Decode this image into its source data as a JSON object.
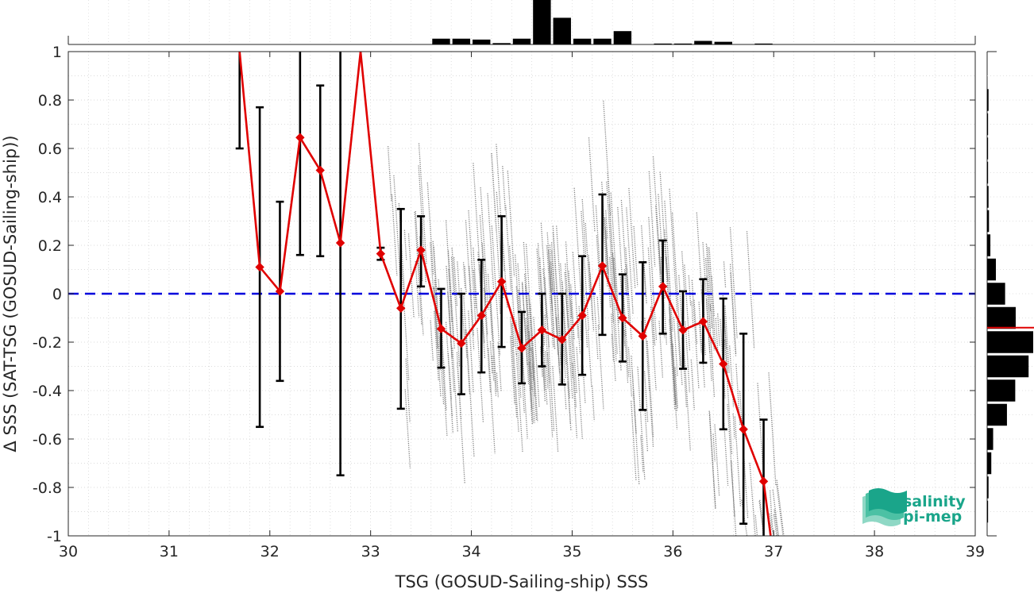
{
  "chart_data": {
    "type": "scatter",
    "xlabel": "TSG (GOSUD-Sailing-ship) SSS",
    "ylabel": "Δ SSS (SAT-TSG (GOSUD-Sailing-ship))",
    "xlim": [
      30,
      39
    ],
    "ylim": [
      -1,
      1
    ],
    "xticks": [
      "30",
      "31",
      "32",
      "33",
      "34",
      "35",
      "36",
      "37",
      "38",
      "39"
    ],
    "yticks": [
      "1",
      "0.8",
      "0.6",
      "0.4",
      "0.2",
      "0",
      "-0.2",
      "-0.4",
      "-0.6",
      "-0.8",
      "-1"
    ],
    "grid": "dotted",
    "zero_line": {
      "y": 0,
      "color": "#0000dd",
      "style": "dashed"
    },
    "binned_mean": {
      "color": "#e00000",
      "points": [
        {
          "x": 31.7,
          "y": 1.0,
          "lo": 0.6,
          "hi": 1.0
        },
        {
          "x": 31.9,
          "y": 0.11,
          "lo": -0.55,
          "hi": 0.77
        },
        {
          "x": 32.1,
          "y": 0.01,
          "lo": -0.36,
          "hi": 0.38
        },
        {
          "x": 32.3,
          "y": 0.645,
          "lo": 0.16,
          "hi": 1.0
        },
        {
          "x": 32.5,
          "y": 0.51,
          "lo": 0.155,
          "hi": 0.86
        },
        {
          "x": 32.7,
          "y": 0.21,
          "lo": -0.75,
          "hi": 1.0
        },
        {
          "x": 32.9,
          "y": 1.0,
          "lo": 1.0,
          "hi": 1.0
        },
        {
          "x": 33.1,
          "y": 0.165,
          "lo": 0.14,
          "hi": 0.19
        },
        {
          "x": 33.3,
          "y": -0.06,
          "lo": -0.475,
          "hi": 0.35
        },
        {
          "x": 33.5,
          "y": 0.18,
          "lo": 0.03,
          "hi": 0.32
        },
        {
          "x": 33.7,
          "y": -0.145,
          "lo": -0.305,
          "hi": 0.02
        },
        {
          "x": 33.9,
          "y": -0.205,
          "lo": -0.415,
          "hi": 0.0
        },
        {
          "x": 34.1,
          "y": -0.09,
          "lo": -0.325,
          "hi": 0.14
        },
        {
          "x": 34.3,
          "y": 0.05,
          "lo": -0.22,
          "hi": 0.32
        },
        {
          "x": 34.5,
          "y": -0.225,
          "lo": -0.37,
          "hi": -0.075
        },
        {
          "x": 34.7,
          "y": -0.15,
          "lo": -0.3,
          "hi": 0.0
        },
        {
          "x": 34.9,
          "y": -0.19,
          "lo": -0.375,
          "hi": 0.0
        },
        {
          "x": 35.1,
          "y": -0.09,
          "lo": -0.335,
          "hi": 0.155
        },
        {
          "x": 35.3,
          "y": 0.115,
          "lo": -0.17,
          "hi": 0.41
        },
        {
          "x": 35.5,
          "y": -0.1,
          "lo": -0.28,
          "hi": 0.08
        },
        {
          "x": 35.7,
          "y": -0.175,
          "lo": -0.48,
          "hi": 0.13
        },
        {
          "x": 35.9,
          "y": 0.03,
          "lo": -0.165,
          "hi": 0.22
        },
        {
          "x": 36.1,
          "y": -0.15,
          "lo": -0.31,
          "hi": 0.01
        },
        {
          "x": 36.3,
          "y": -0.115,
          "lo": -0.285,
          "hi": 0.06
        },
        {
          "x": 36.5,
          "y": -0.29,
          "lo": -0.56,
          "hi": -0.02
        },
        {
          "x": 36.7,
          "y": -0.56,
          "lo": -0.95,
          "hi": -0.165
        },
        {
          "x": 36.9,
          "y": -0.775,
          "lo": -1.0,
          "hi": -0.52
        },
        {
          "x": 36.97,
          "y": -1.0,
          "lo": -1.0,
          "hi": -1.0
        }
      ]
    },
    "scatter_color": "#808080",
    "top_histogram": {
      "color": "#000000",
      "bins": [
        {
          "x": 33.7,
          "value": 0.13
        },
        {
          "x": 33.9,
          "value": 0.13
        },
        {
          "x": 34.1,
          "value": 0.11
        },
        {
          "x": 34.3,
          "value": 0.03
        },
        {
          "x": 34.5,
          "value": 0.13
        },
        {
          "x": 34.7,
          "value": 1.0
        },
        {
          "x": 34.9,
          "value": 0.6
        },
        {
          "x": 35.1,
          "value": 0.13
        },
        {
          "x": 35.3,
          "value": 0.13
        },
        {
          "x": 35.5,
          "value": 0.3
        },
        {
          "x": 35.9,
          "value": 0.02
        },
        {
          "x": 36.1,
          "value": 0.02
        },
        {
          "x": 36.3,
          "value": 0.08
        },
        {
          "x": 36.5,
          "value": 0.06
        },
        {
          "x": 36.9,
          "value": 0.02
        }
      ]
    },
    "right_histogram": {
      "color": "#000000",
      "median_line": {
        "y": -0.14,
        "color": "#e00000"
      },
      "bins": [
        {
          "y": 0.8,
          "value": 0.03
        },
        {
          "y": 0.7,
          "value": 0.02
        },
        {
          "y": 0.6,
          "value": 0.02
        },
        {
          "y": 0.5,
          "value": 0.02
        },
        {
          "y": 0.4,
          "value": 0.03
        },
        {
          "y": 0.3,
          "value": 0.04
        },
        {
          "y": 0.2,
          "value": 0.07
        },
        {
          "y": 0.1,
          "value": 0.19
        },
        {
          "y": 0.0,
          "value": 0.39
        },
        {
          "y": -0.1,
          "value": 0.62
        },
        {
          "y": -0.2,
          "value": 1.0
        },
        {
          "y": -0.3,
          "value": 0.9
        },
        {
          "y": -0.4,
          "value": 0.61
        },
        {
          "y": -0.5,
          "value": 0.43
        },
        {
          "y": -0.6,
          "value": 0.13
        },
        {
          "y": -0.7,
          "value": 0.09
        },
        {
          "y": -0.8,
          "value": 0.03
        },
        {
          "y": -0.9,
          "value": 0.02
        }
      ]
    }
  },
  "logo": {
    "line1": "salinity",
    "line2": "pi-mep",
    "color": "#1aa58a"
  }
}
